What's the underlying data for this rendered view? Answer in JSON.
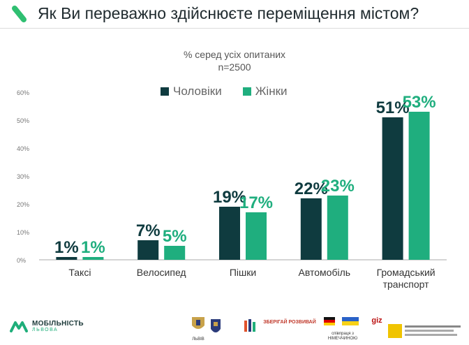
{
  "header": {
    "title": "Як Ви переважно здійснюєте переміщення містом?"
  },
  "colors": {
    "men": "#0f3b3f",
    "women": "#1fae7e",
    "accent": "#2fbf71",
    "axis": "#999999",
    "grid": "#e6e6e6"
  },
  "chart_data": {
    "type": "bar",
    "title": "% серед усіх опитаних",
    "subtitle": "n=2500",
    "xlabel": "",
    "ylabel": "",
    "ylim": [
      0,
      60
    ],
    "yticks": [
      "0%",
      "10%",
      "20%",
      "30%",
      "40%",
      "50%",
      "60%"
    ],
    "grid": false,
    "legend_position": "top",
    "categories": [
      "Таксі",
      "Велосипед",
      "Пішки",
      "Автомобіль",
      "Громадський транспорт"
    ],
    "series": [
      {
        "name": "Чоловіки",
        "values": [
          1,
          7,
          19,
          22,
          51
        ],
        "labels": [
          "1%",
          "7%",
          "19%",
          "22%",
          "51%"
        ]
      },
      {
        "name": "Жінки",
        "values": [
          1,
          5,
          17,
          23,
          53
        ],
        "labels": [
          "1%",
          "5%",
          "17%",
          "23%",
          "53%"
        ]
      }
    ]
  },
  "footer": {
    "brand_name": "МОБІЛЬНІСТЬ",
    "brand_sub": "ЛЬВОВА",
    "logos": [
      "ЛЬВІВ",
      "ЗБЕРІГАЙ РОЗВИВАЙ",
      "співпраця з НІМЕЧЧИНОЮ",
      "giz"
    ]
  }
}
